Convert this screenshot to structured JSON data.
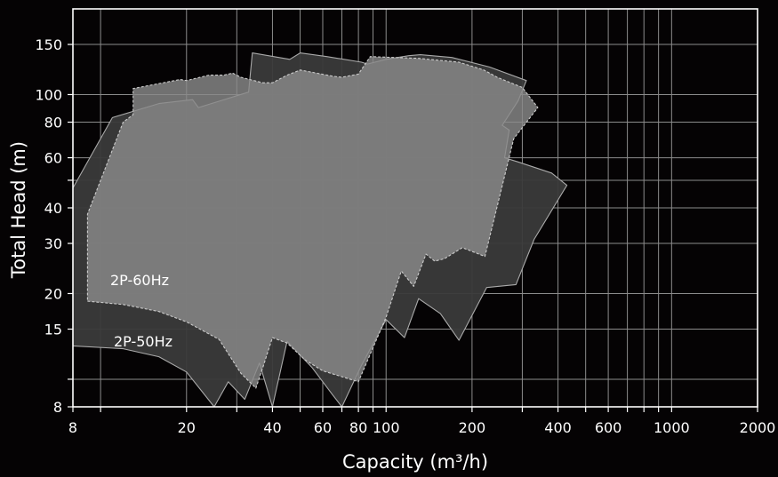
{
  "chart_data": {
    "type": "area",
    "title": "",
    "xlabel": "Capacity (m³/h)",
    "ylabel": "Total Head (m)",
    "x_scale": "log",
    "y_scale": "log",
    "xlim": [
      8,
      2000
    ],
    "ylim": [
      8,
      200
    ],
    "grid": true,
    "x_ticks": [
      8,
      20,
      40,
      60,
      80,
      100,
      200,
      400,
      600,
      1000,
      2000
    ],
    "x_tick_labels": [
      "8",
      "20",
      "40",
      "60",
      "80",
      "100",
      "200",
      "400",
      "600",
      "1000",
      "2000"
    ],
    "x_minor_ticks": [
      10,
      30,
      50,
      70,
      90,
      300,
      500,
      700,
      800,
      900
    ],
    "y_ticks": [
      8,
      15,
      20,
      30,
      40,
      60,
      80,
      100,
      150
    ],
    "y_tick_labels": [
      "8",
      "15",
      "20",
      "30",
      "40",
      "60",
      "80",
      "100",
      "150"
    ],
    "y_minor_ticks": [
      10,
      50
    ],
    "regions": [
      {
        "name": "2P-50Hz",
        "fill": "#3a3a3a",
        "stroke": "#aaaaaa",
        "points": [
          [
            8,
            13.1
          ],
          [
            12,
            12.8
          ],
          [
            16,
            12
          ],
          [
            20,
            10.6
          ],
          [
            25,
            8
          ],
          [
            28,
            9.8
          ],
          [
            32,
            8.5
          ],
          [
            36,
            11.4
          ],
          [
            40,
            8
          ],
          [
            45,
            13.6
          ],
          [
            55,
            11
          ],
          [
            65,
            8.8
          ],
          [
            70,
            8
          ],
          [
            82,
            11.2
          ],
          [
            100,
            16.2
          ],
          [
            116,
            14
          ],
          [
            130,
            19.2
          ],
          [
            155,
            17
          ],
          [
            180,
            13.7
          ],
          [
            225,
            21
          ],
          [
            285,
            21.5
          ],
          [
            330,
            31
          ],
          [
            430,
            48
          ],
          [
            380,
            53
          ],
          [
            290,
            58
          ],
          [
            260,
            60
          ],
          [
            270,
            75
          ],
          [
            255,
            78
          ],
          [
            290,
            95
          ],
          [
            310,
            112
          ],
          [
            230,
            125
          ],
          [
            170,
            135
          ],
          [
            132,
            138
          ],
          [
            120,
            137
          ],
          [
            100,
            133
          ],
          [
            86,
            128
          ],
          [
            82,
            130
          ],
          [
            62,
            136
          ],
          [
            50,
            140
          ],
          [
            46,
            133
          ],
          [
            34,
            140
          ],
          [
            33,
            102
          ],
          [
            22,
            90
          ],
          [
            21,
            96
          ],
          [
            16,
            93
          ],
          [
            11,
            83
          ],
          [
            8,
            47
          ],
          [
            8,
            13.1
          ]
        ]
      },
      {
        "name": "2P-60Hz",
        "fill": "#8a8a8a",
        "stroke": "#cccccc",
        "points": [
          [
            9,
            18.8
          ],
          [
            12,
            18.3
          ],
          [
            16,
            17.3
          ],
          [
            20,
            15.9
          ],
          [
            26,
            13.8
          ],
          [
            31,
            10.5
          ],
          [
            35,
            9.3
          ],
          [
            37,
            11
          ],
          [
            40,
            14
          ],
          [
            45,
            13.4
          ],
          [
            52,
            11.7
          ],
          [
            60,
            10.7
          ],
          [
            80,
            9.8
          ],
          [
            100,
            16.5
          ],
          [
            113,
            24
          ],
          [
            125,
            21.2
          ],
          [
            138,
            27.5
          ],
          [
            148,
            26
          ],
          [
            160,
            26.5
          ],
          [
            185,
            29
          ],
          [
            222,
            27
          ],
          [
            280,
            70
          ],
          [
            340,
            90
          ],
          [
            300,
            106
          ],
          [
            245,
            115
          ],
          [
            220,
            122
          ],
          [
            180,
            130
          ],
          [
            130,
            134
          ],
          [
            88,
            136
          ],
          [
            80,
            118
          ],
          [
            70,
            115
          ],
          [
            65,
            116
          ],
          [
            50,
            122
          ],
          [
            45,
            117
          ],
          [
            40,
            110
          ],
          [
            37,
            110
          ],
          [
            31,
            115
          ],
          [
            29,
            119
          ],
          [
            27,
            117
          ],
          [
            24,
            117
          ],
          [
            20,
            112
          ],
          [
            19,
            113
          ],
          [
            13,
            105
          ],
          [
            13,
            85
          ],
          [
            12,
            80
          ],
          [
            9,
            38
          ],
          [
            9,
            18.8
          ]
        ]
      }
    ],
    "annotations": [
      "2P-60Hz",
      "2P-50Hz"
    ]
  }
}
